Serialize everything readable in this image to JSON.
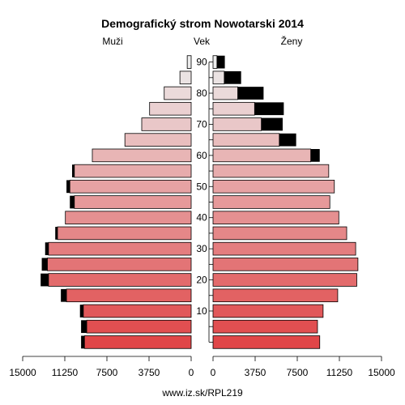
{
  "chart_data": {
    "type": "bar",
    "title": "Demografický strom Nowotarski 2014",
    "left_label": "Muži",
    "center_label": "Vek",
    "right_label": "Ženy",
    "footer": "www.iz.sk/RPL219",
    "age_tick_labels": [
      "10",
      "20",
      "30",
      "40",
      "50",
      "60",
      "70",
      "80",
      "90"
    ],
    "xticks_left": [
      "15000",
      "11250",
      "7500",
      "3750",
      "0"
    ],
    "xticks_right": [
      "0",
      "3750",
      "7500",
      "11250",
      "15000"
    ],
    "xlim": [
      0,
      15000
    ],
    "age_groups": [
      "0-4",
      "5-9",
      "10-14",
      "15-19",
      "20-24",
      "25-29",
      "30-34",
      "35-39",
      "40-44",
      "45-49",
      "50-54",
      "55-59",
      "60-64",
      "65-69",
      "70-74",
      "75-79",
      "80-84",
      "85-89",
      "90+"
    ],
    "series": [
      {
        "name": "Muži",
        "values": [
          9500,
          9300,
          9600,
          11100,
          12700,
          12800,
          12700,
          11900,
          11200,
          10400,
          10800,
          10400,
          8800,
          5900,
          4400,
          3700,
          2400,
          1000,
          350
        ],
        "excess": [
          300,
          500,
          300,
          500,
          700,
          500,
          300,
          200,
          0,
          400,
          300,
          200,
          0,
          0,
          0,
          0,
          0,
          0,
          0
        ]
      },
      {
        "name": "Ženy",
        "values": [
          9500,
          9300,
          9800,
          11100,
          12800,
          12900,
          12700,
          11900,
          11200,
          10400,
          10800,
          10300,
          8700,
          5900,
          4300,
          3700,
          2200,
          1000,
          350
        ],
        "excess": [
          0,
          0,
          0,
          0,
          0,
          0,
          0,
          0,
          0,
          0,
          0,
          0,
          800,
          1500,
          1900,
          2600,
          2300,
          1500,
          700
        ]
      }
    ],
    "colors": {
      "excess": "#000000",
      "outline": "#000000"
    }
  }
}
